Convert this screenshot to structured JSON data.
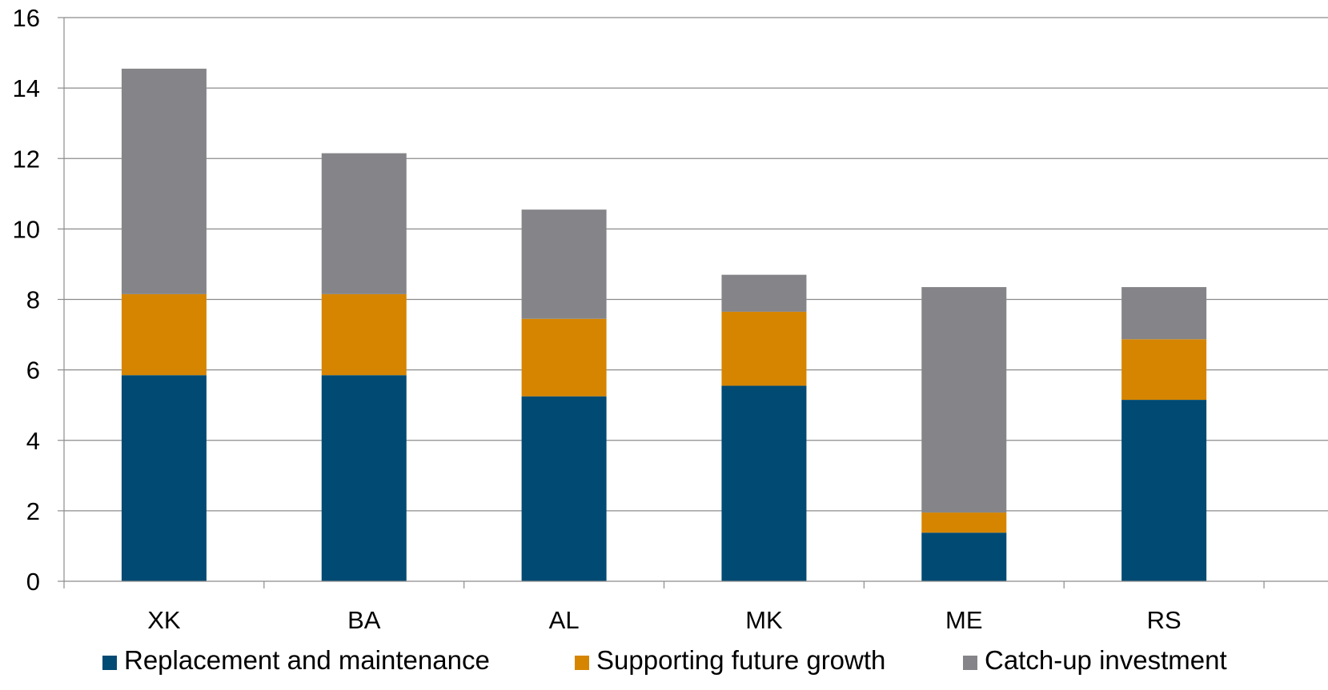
{
  "chart_data": {
    "type": "bar",
    "stacked": true,
    "categories": [
      "XK",
      "BA",
      "AL",
      "MK",
      "ME",
      "RS"
    ],
    "series": [
      {
        "name": "Replacement and maintenance",
        "color": "#004a73",
        "values": [
          5.85,
          5.85,
          5.25,
          5.55,
          1.38,
          5.15
        ]
      },
      {
        "name": "Supporting future growth",
        "color": "#d68500",
        "values": [
          2.3,
          2.3,
          2.2,
          2.1,
          0.57,
          1.72
        ]
      },
      {
        "name": "Catch-up investment",
        "color": "#858589",
        "values": [
          6.4,
          4.0,
          3.1,
          1.05,
          6.4,
          1.48
        ]
      }
    ],
    "title": "",
    "xlabel": "",
    "ylabel": "",
    "ylim": [
      0,
      16
    ],
    "yticks": [
      0,
      2,
      4,
      6,
      8,
      10,
      12,
      14,
      16
    ],
    "grid": true,
    "legend_position": "bottom"
  }
}
